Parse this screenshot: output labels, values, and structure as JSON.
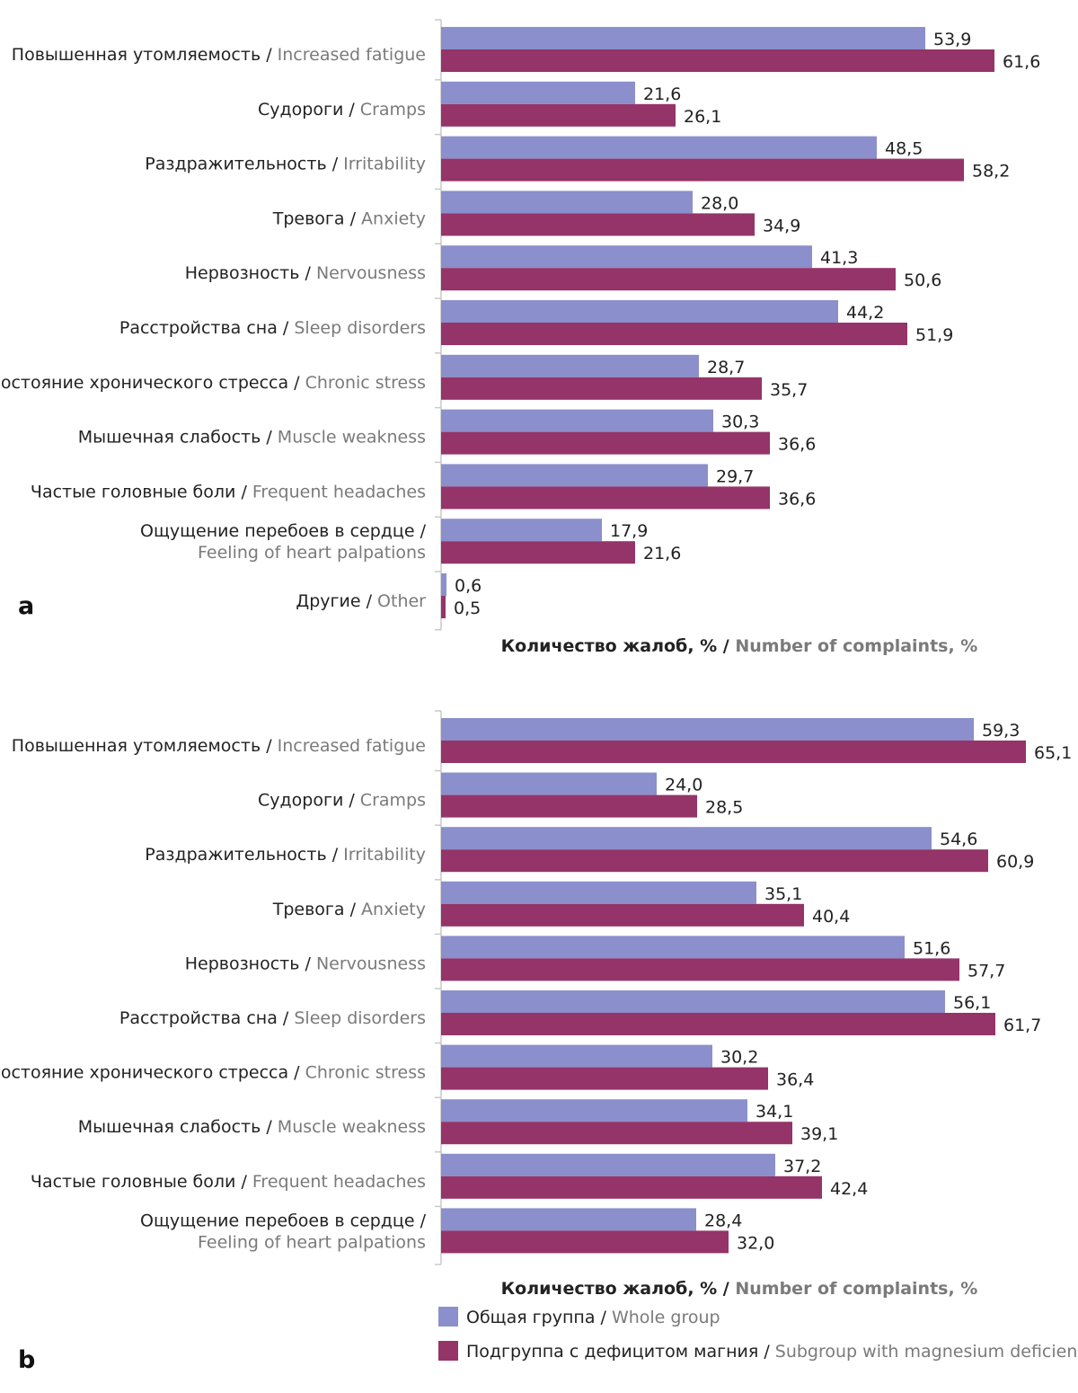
{
  "colors": {
    "whole_group": "#8b8fcb",
    "mg_deficiency": "#943468",
    "axis": "#c8c8c8",
    "text_ru": "#222222",
    "text_en": "#7a7a7a"
  },
  "legend": {
    "whole_group": {
      "ru": "Общая группа",
      "en": "Whole group"
    },
    "mg_deficiency": {
      "ru": "Подгруппа с дефицитом магния",
      "en": "Subgroup with magnesium deficiency"
    }
  },
  "chart_data": [
    {
      "type": "bar",
      "orientation": "horizontal",
      "panel_label": "a",
      "xlabel": {
        "ru": "Количество жалоб, %",
        "en": "Number of complaints, %"
      },
      "categories": [
        {
          "ru": "Повышенная утомляемость",
          "en": "Increased fatigue"
        },
        {
          "ru": "Судороги",
          "en": "Cramps"
        },
        {
          "ru": "Раздражительность",
          "en": "Irritability"
        },
        {
          "ru": "Тревога",
          "en": "Anxiety"
        },
        {
          "ru": "Нервозность",
          "en": "Nervousness"
        },
        {
          "ru": "Расстройства сна",
          "en": "Sleep disorders"
        },
        {
          "ru": "Состояние хронического стресса",
          "en": "Chronic stress"
        },
        {
          "ru": "Мышечная слабость",
          "en": "Muscle weakness"
        },
        {
          "ru": "Частые головные боли",
          "en": "Frequent headaches"
        },
        {
          "ru": "Ощущение перебоев в сердце",
          "en": "Feeling of heart palpations",
          "two_line": true
        },
        {
          "ru": "Другие",
          "en": "Other"
        }
      ],
      "series": [
        {
          "key": "whole_group",
          "values": [
            53.9,
            21.6,
            48.5,
            28.0,
            41.3,
            44.2,
            28.7,
            30.3,
            29.7,
            17.9,
            0.6
          ],
          "labels": [
            "53,9",
            "21,6",
            "48,5",
            "28,0",
            "41,3",
            "44,2",
            "28,7",
            "30,3",
            "29,7",
            "17,9",
            "0,6"
          ]
        },
        {
          "key": "mg_deficiency",
          "values": [
            61.6,
            26.1,
            58.2,
            34.9,
            50.6,
            51.9,
            35.7,
            36.6,
            36.6,
            21.6,
            0.5
          ],
          "labels": [
            "61,6",
            "26,1",
            "58,2",
            "34,9",
            "50,6",
            "51,9",
            "35,7",
            "36,6",
            "36,6",
            "21,6",
            "0,5"
          ]
        }
      ]
    },
    {
      "type": "bar",
      "orientation": "horizontal",
      "panel_label": "b",
      "xlabel": {
        "ru": "Количество жалоб, %",
        "en": "Number of complaints, %"
      },
      "categories": [
        {
          "ru": "Повышенная утомляемость",
          "en": "Increased fatigue"
        },
        {
          "ru": "Судороги",
          "en": "Cramps"
        },
        {
          "ru": "Раздражительность",
          "en": "Irritability"
        },
        {
          "ru": "Тревога",
          "en": "Anxiety"
        },
        {
          "ru": "Нервозность",
          "en": "Nervousness"
        },
        {
          "ru": "Расстройства сна",
          "en": "Sleep disorders"
        },
        {
          "ru": "Состояние хронического стресса",
          "en": "Chronic stress"
        },
        {
          "ru": "Мышечная слабость",
          "en": "Muscle weakness"
        },
        {
          "ru": "Частые головные боли",
          "en": "Frequent headaches"
        },
        {
          "ru": "Ощущение перебоев в сердце",
          "en": "Feeling of heart palpations",
          "two_line": true
        }
      ],
      "series": [
        {
          "key": "whole_group",
          "values": [
            59.3,
            24.0,
            54.6,
            35.1,
            51.6,
            56.1,
            30.2,
            34.1,
            37.2,
            28.4
          ],
          "labels": [
            "59,3",
            "24,0",
            "54,6",
            "35,1",
            "51,6",
            "56,1",
            "30,2",
            "34,1",
            "37,2",
            "28,4"
          ]
        },
        {
          "key": "mg_deficiency",
          "values": [
            65.1,
            28.5,
            60.9,
            40.4,
            57.7,
            61.7,
            36.4,
            39.1,
            42.4,
            32.0
          ],
          "labels": [
            "65,1",
            "28,5",
            "60,9",
            "40,4",
            "57,7",
            "61,7",
            "36,4",
            "39,1",
            "42,4",
            "32,0"
          ]
        }
      ]
    }
  ]
}
